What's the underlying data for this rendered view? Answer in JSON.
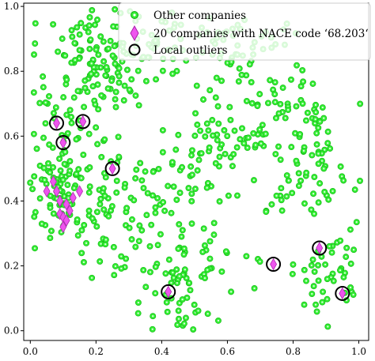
{
  "chart_data": {
    "type": "scatter",
    "title": "",
    "xlabel": "",
    "ylabel": "",
    "xlim": [
      -0.02,
      1.03
    ],
    "ylim": [
      -0.03,
      1.01
    ],
    "xticks": [
      0.0,
      0.2,
      0.4,
      0.6,
      0.8,
      1.0
    ],
    "xtick_labels": [
      "0.0",
      "0.2",
      "0.4",
      "0.6",
      "0.8",
      "1.0"
    ],
    "yticks": [
      0.0,
      0.2,
      0.4,
      0.6,
      0.8,
      1.0
    ],
    "ytick_labels": [
      "0.0",
      "0.2",
      "0.4",
      "0.6",
      "0.8",
      "1.0"
    ],
    "grid": false,
    "legend": {
      "placement": "top-right",
      "entries": [
        {
          "label": "Other companies",
          "marker": "circle",
          "color": "#33ee33"
        },
        {
          "label": "20 companies with NACE code ‘68.203‘",
          "marker": "diamond",
          "color": "#ee55ee"
        },
        {
          "label": "Local outliers",
          "marker": "hollow-circle",
          "color": "#000000"
        }
      ]
    },
    "series": [
      {
        "name": "20 companies with NACE code ‘68.203‘",
        "marker": "diamond",
        "color": "#ee55ee",
        "points": [
          [
            0.08,
            0.64
          ],
          [
            0.16,
            0.645
          ],
          [
            0.1,
            0.58
          ],
          [
            0.25,
            0.5
          ],
          [
            0.07,
            0.46
          ],
          [
            0.05,
            0.43
          ],
          [
            0.08,
            0.43
          ],
          [
            0.09,
            0.4
          ],
          [
            0.15,
            0.43
          ],
          [
            0.13,
            0.41
          ],
          [
            0.11,
            0.39
          ],
          [
            0.12,
            0.37
          ],
          [
            0.09,
            0.36
          ],
          [
            0.1,
            0.35
          ],
          [
            0.11,
            0.34
          ],
          [
            0.1,
            0.32
          ],
          [
            0.42,
            0.12
          ],
          [
            0.74,
            0.205
          ],
          [
            0.88,
            0.255
          ],
          [
            0.95,
            0.115
          ]
        ]
      }
    ],
    "outliers": {
      "name": "Local outliers",
      "marker": "hollow-circle",
      "points": [
        [
          0.08,
          0.64
        ],
        [
          0.16,
          0.645
        ],
        [
          0.1,
          0.58
        ],
        [
          0.25,
          0.5
        ],
        [
          0.42,
          0.12
        ],
        [
          0.74,
          0.205
        ],
        [
          0.88,
          0.255
        ],
        [
          0.95,
          0.115
        ]
      ]
    },
    "other_companies": {
      "name": "Other companies",
      "marker": "circle",
      "color": "#33ee33",
      "approx_count": 700,
      "clusters": [
        {
          "center": [
            0.22,
            0.85
          ],
          "spread": [
            0.1,
            0.09
          ],
          "n": 130
        },
        {
          "center": [
            0.47,
            0.86
          ],
          "spread": [
            0.12,
            0.06
          ],
          "n": 70
        },
        {
          "center": [
            0.23,
            0.3
          ],
          "spread": [
            0.07,
            0.08
          ],
          "n": 45
        },
        {
          "center": [
            0.13,
            0.55
          ],
          "spread": [
            0.08,
            0.1
          ],
          "n": 70
        },
        {
          "center": [
            0.09,
            0.41
          ],
          "spread": [
            0.05,
            0.06
          ],
          "n": 55
        },
        {
          "center": [
            0.37,
            0.42
          ],
          "spread": [
            0.07,
            0.07
          ],
          "n": 40
        },
        {
          "center": [
            0.56,
            0.56
          ],
          "spread": [
            0.08,
            0.08
          ],
          "n": 60
        },
        {
          "center": [
            0.85,
            0.5
          ],
          "spread": [
            0.07,
            0.09
          ],
          "n": 70
        },
        {
          "center": [
            0.78,
            0.7
          ],
          "spread": [
            0.09,
            0.06
          ],
          "n": 40
        },
        {
          "center": [
            0.5,
            0.2
          ],
          "spread": [
            0.08,
            0.1
          ],
          "n": 55
        },
        {
          "center": [
            0.43,
            0.08
          ],
          "spread": [
            0.05,
            0.05
          ],
          "n": 30
        },
        {
          "center": [
            0.91,
            0.17
          ],
          "spread": [
            0.05,
            0.06
          ],
          "n": 45
        },
        {
          "center": [
            0.72,
            0.88
          ],
          "spread": [
            0.08,
            0.05
          ],
          "n": 20
        }
      ]
    }
  }
}
